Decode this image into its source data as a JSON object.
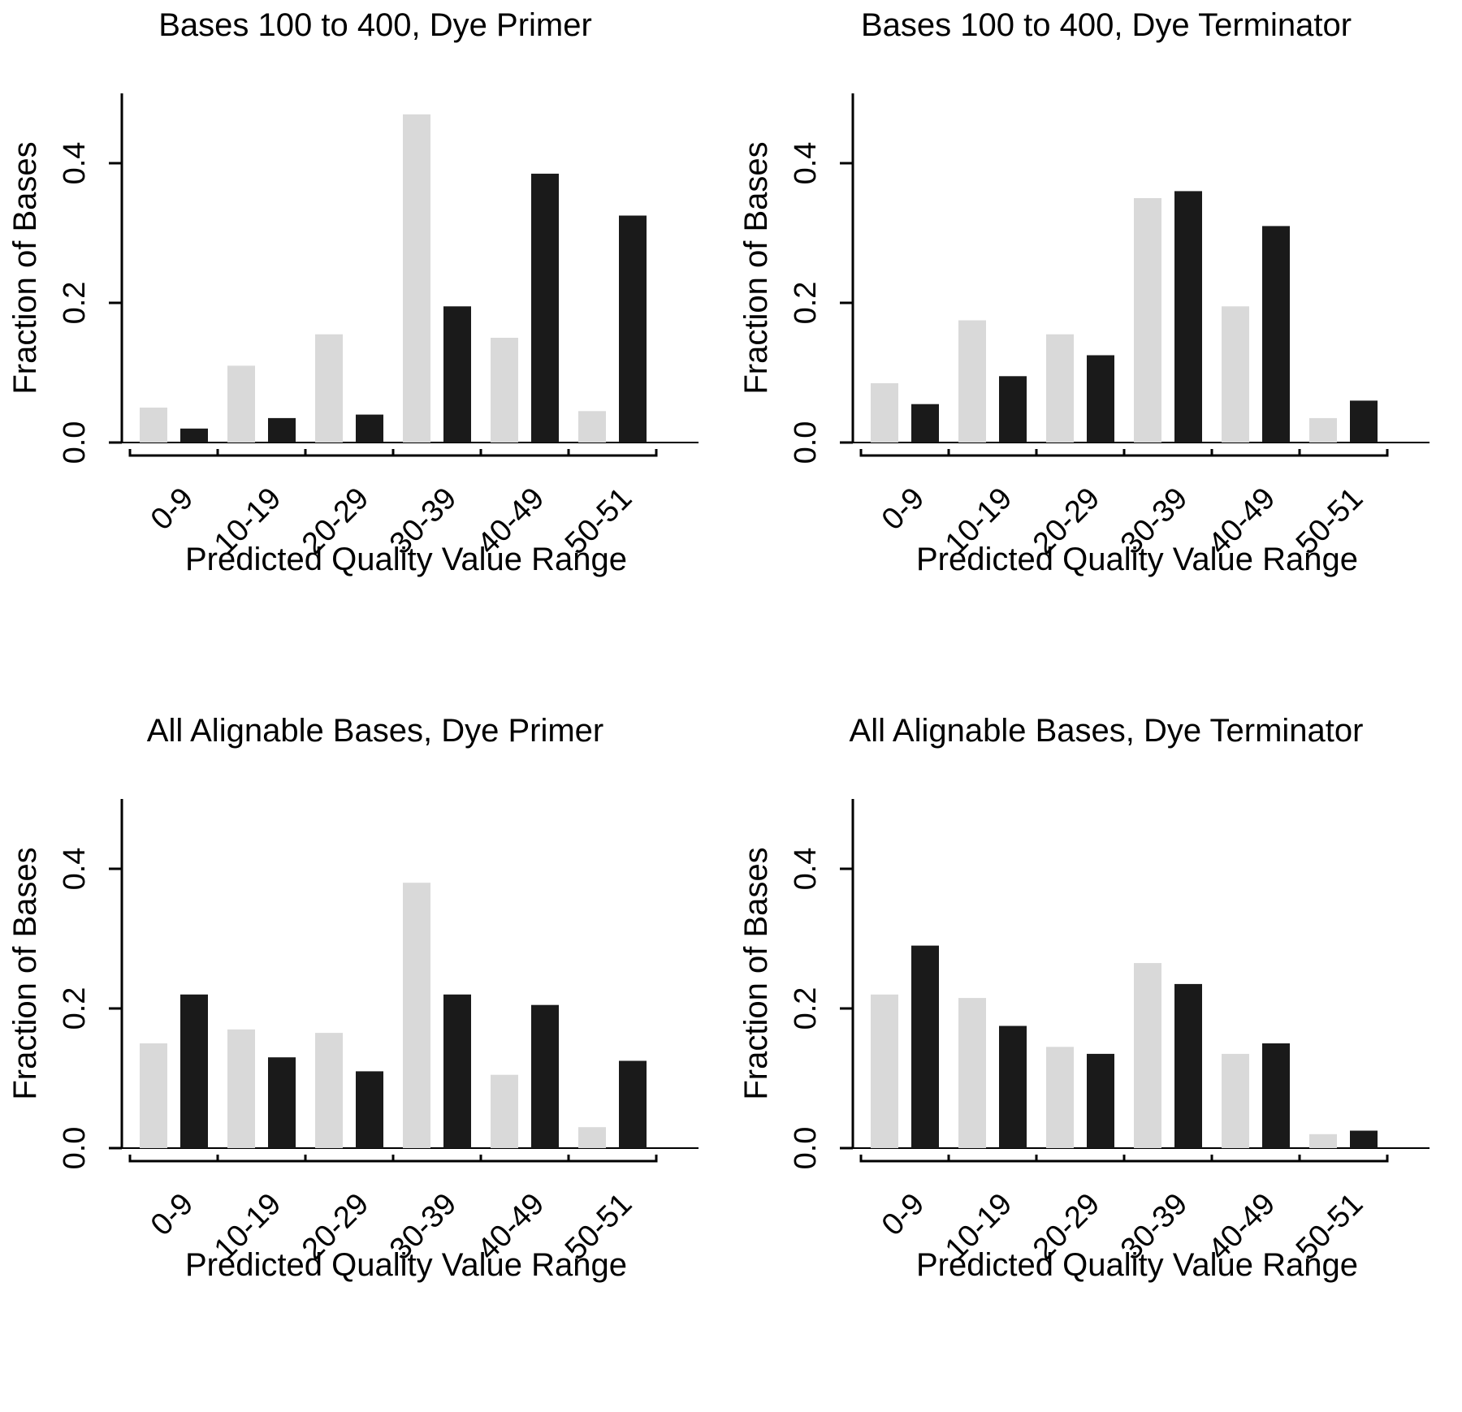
{
  "page": {
    "background": "#ffffff",
    "text_color": "#000000"
  },
  "colors": {
    "series_gray": "#d9d9d9",
    "series_black": "#1a1a1a",
    "axis": "#000000"
  },
  "chart_data": [
    {
      "type": "bar",
      "title": "Bases 100 to 400, Dye Primer",
      "xlabel": "Predicted Quality Value Range",
      "ylabel": "Fraction of Bases",
      "categories": [
        "0-9",
        "10-19",
        "20-29",
        "30-39",
        "40-49",
        "50-51"
      ],
      "yticks": [
        0.0,
        0.2,
        0.4
      ],
      "ylim": [
        0,
        0.5
      ],
      "grid": false,
      "legend": "none",
      "series": [
        {
          "name": "gray-bars",
          "values": [
            0.05,
            0.11,
            0.155,
            0.47,
            0.15,
            0.045
          ]
        },
        {
          "name": "black-bars",
          "values": [
            0.02,
            0.035,
            0.04,
            0.195,
            0.385,
            0.325
          ]
        }
      ]
    },
    {
      "type": "bar",
      "title": "Bases 100 to 400, Dye Terminator",
      "xlabel": "Predicted Quality Value Range",
      "ylabel": "Fraction of Bases",
      "categories": [
        "0-9",
        "10-19",
        "20-29",
        "30-39",
        "40-49",
        "50-51"
      ],
      "yticks": [
        0.0,
        0.2,
        0.4
      ],
      "ylim": [
        0,
        0.5
      ],
      "grid": false,
      "legend": "none",
      "series": [
        {
          "name": "gray-bars",
          "values": [
            0.085,
            0.175,
            0.155,
            0.35,
            0.195,
            0.035
          ]
        },
        {
          "name": "black-bars",
          "values": [
            0.055,
            0.095,
            0.125,
            0.36,
            0.31,
            0.06
          ]
        }
      ]
    },
    {
      "type": "bar",
      "title": "All Alignable Bases, Dye Primer",
      "xlabel": "Predicted Quality Value Range",
      "ylabel": "Fraction of Bases",
      "categories": [
        "0-9",
        "10-19",
        "20-29",
        "30-39",
        "40-49",
        "50-51"
      ],
      "yticks": [
        0.0,
        0.2,
        0.4
      ],
      "ylim": [
        0,
        0.5
      ],
      "grid": false,
      "legend": "none",
      "series": [
        {
          "name": "gray-bars",
          "values": [
            0.15,
            0.17,
            0.165,
            0.38,
            0.105,
            0.03
          ]
        },
        {
          "name": "black-bars",
          "values": [
            0.22,
            0.13,
            0.11,
            0.22,
            0.205,
            0.125
          ]
        }
      ]
    },
    {
      "type": "bar",
      "title": "All Alignable Bases, Dye Terminator",
      "xlabel": "Predicted Quality Value Range",
      "ylabel": "Fraction of Bases",
      "categories": [
        "0-9",
        "10-19",
        "20-29",
        "30-39",
        "40-49",
        "50-51"
      ],
      "yticks": [
        0.0,
        0.2,
        0.4
      ],
      "ylim": [
        0,
        0.5
      ],
      "grid": false,
      "legend": "none",
      "series": [
        {
          "name": "gray-bars",
          "values": [
            0.22,
            0.215,
            0.145,
            0.265,
            0.135,
            0.02
          ]
        },
        {
          "name": "black-bars",
          "values": [
            0.29,
            0.175,
            0.135,
            0.235,
            0.15,
            0.025
          ]
        }
      ]
    }
  ]
}
